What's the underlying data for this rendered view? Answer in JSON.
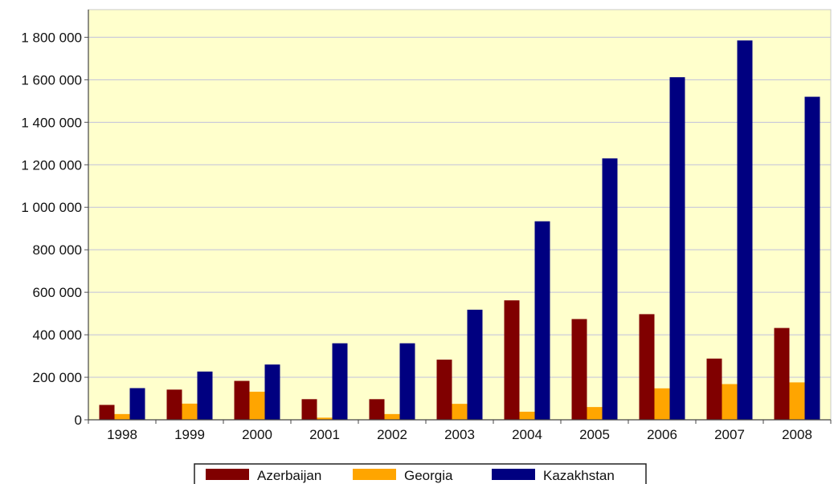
{
  "chart_data": {
    "type": "bar",
    "title": "",
    "xlabel": "",
    "ylabel": "",
    "categories": [
      "1998",
      "1999",
      "2000",
      "2001",
      "2002",
      "2003",
      "2004",
      "2005",
      "2006",
      "2007",
      "2008"
    ],
    "series": [
      {
        "name": "Azerbaijan",
        "color": "#800000",
        "values": [
          70000,
          142000,
          183000,
          97000,
          97000,
          283000,
          562000,
          474000,
          497000,
          288000,
          432000
        ]
      },
      {
        "name": "Georgia",
        "color": "#ffa500",
        "values": [
          27000,
          76000,
          132000,
          10000,
          27000,
          75000,
          38000,
          60000,
          148000,
          168000,
          176000
        ]
      },
      {
        "name": "Kazakhstan",
        "color": "#000080",
        "values": [
          149000,
          227000,
          260000,
          360000,
          360000,
          518000,
          934000,
          1230000,
          1612000,
          1785000,
          1520000
        ]
      }
    ],
    "ylim": [
      0,
      1800000
    ],
    "yticks": [
      0,
      200000,
      400000,
      600000,
      800000,
      1000000,
      1200000,
      1400000,
      1600000,
      1800000
    ],
    "ytick_labels": [
      "0",
      "200 000",
      "400 000",
      "600 000",
      "800 000",
      "1 000 000",
      "1 200 000",
      "1 400 000",
      "1 600 000",
      "1 800 000"
    ],
    "plot_background": "#ffffcc",
    "gridlines": true,
    "legend_position": "bottom"
  }
}
